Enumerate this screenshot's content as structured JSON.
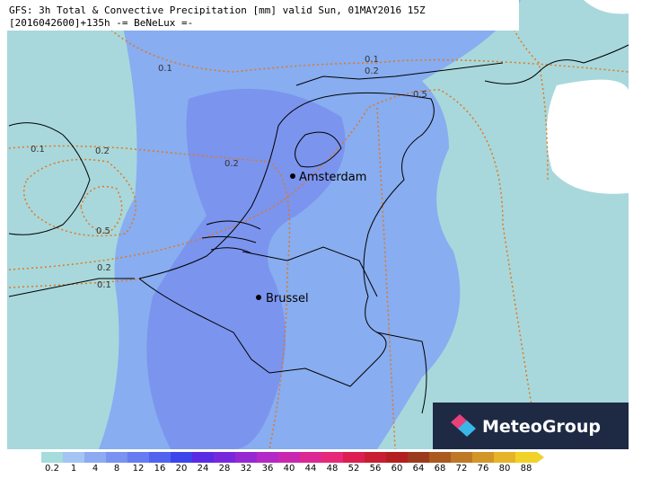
{
  "header": {
    "title": "GFS: 3h Total & Convective Precipitation [mm] valid Sun, 01MAY2016 15Z",
    "subtitle": "[2016042600]+135h -= BeNeLux =-"
  },
  "contour_labels": [
    "0.1",
    "0.1",
    "0.2",
    "0.5",
    "0.1",
    "0.2",
    "0.2",
    "0.5",
    "0.2",
    "0.1"
  ],
  "cities": [
    "Amsterdam",
    "Brussel"
  ],
  "logo": "MeteoGroup",
  "legend": {
    "labels": [
      "0.2",
      "1",
      "4",
      "8",
      "12",
      "16",
      "20",
      "24",
      "28",
      "32",
      "36",
      "40",
      "44",
      "48",
      "52",
      "56",
      "60",
      "64",
      "68",
      "72",
      "76",
      "80",
      "88"
    ],
    "colors": [
      "#a6dcdc",
      "#a4c4f4",
      "#8eaaf2",
      "#7a92f0",
      "#667cf0",
      "#5064ee",
      "#3c44ec",
      "#5a2ae4",
      "#7828dc",
      "#9628d2",
      "#b428c8",
      "#c828b0",
      "#dc2894",
      "#e62878",
      "#dc1e50",
      "#c81e32",
      "#b41e1e",
      "#9c3a1e",
      "#aa5a1e",
      "#be7828",
      "#d29628",
      "#e6b428",
      "#f0d228"
    ]
  }
}
